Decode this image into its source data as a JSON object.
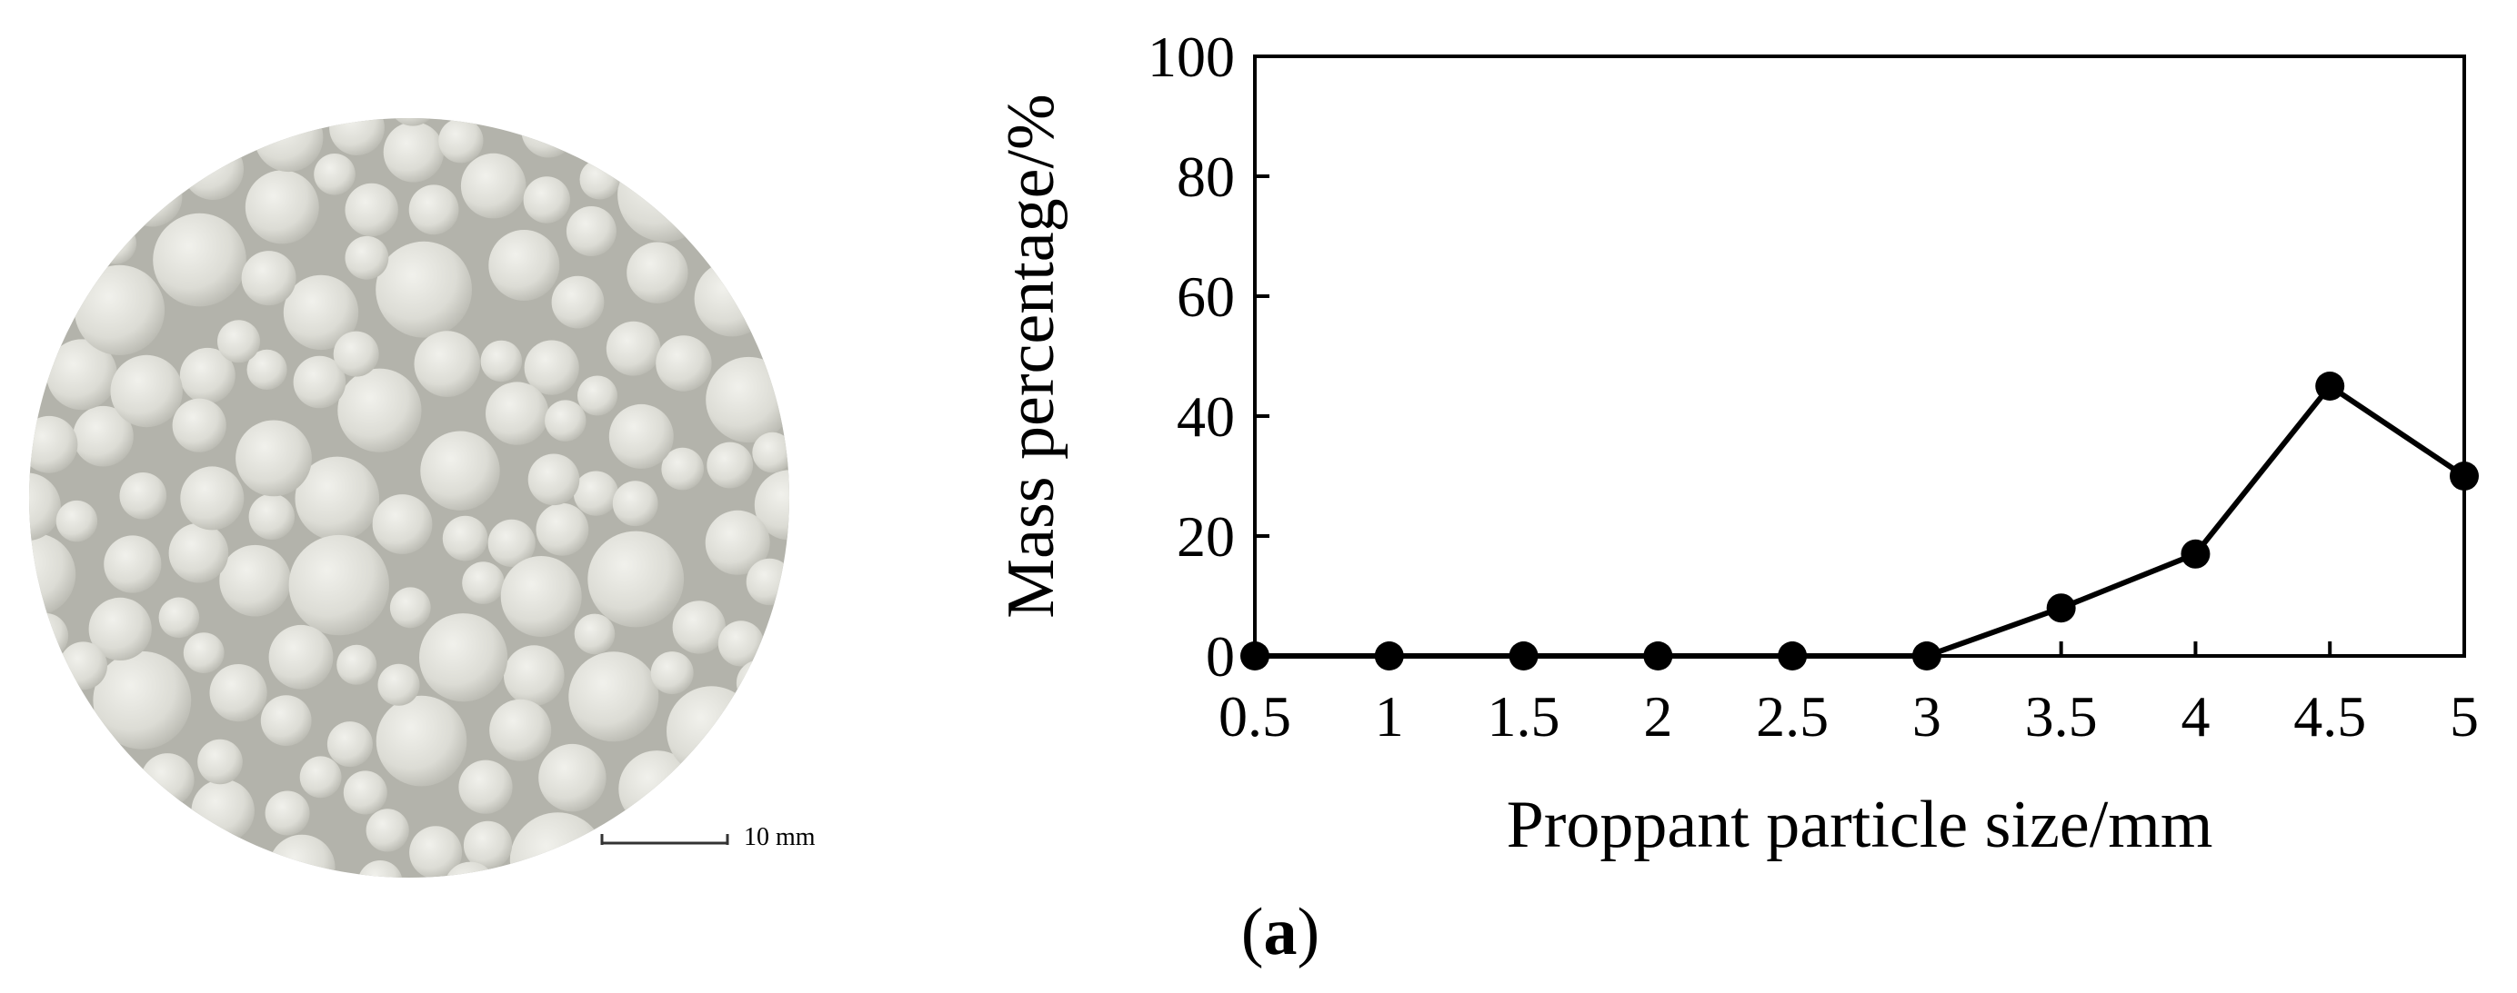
{
  "photo": {
    "description_icon": "proppant-photo",
    "scale_bar_label": "10 mm"
  },
  "panel_label": {
    "open": "(",
    "letter": "a",
    "close": ")"
  },
  "chart_data": {
    "type": "line",
    "x": [
      0.5,
      1,
      1.5,
      2,
      2.5,
      3,
      3.5,
      4,
      4.5,
      5
    ],
    "x_tick_labels": [
      "0.5",
      "1",
      "1.5",
      "2",
      "2.5",
      "3",
      "3.5",
      "4",
      "4.5",
      "5"
    ],
    "series": [
      {
        "values": [
          0,
          0,
          0,
          0,
          0,
          0,
          8,
          17,
          45,
          30
        ]
      }
    ],
    "xlabel": "Proppant particle size/mm",
    "ylabel": "Mass percentage/%",
    "xlim": [
      0.5,
      5
    ],
    "ylim": [
      0,
      100
    ],
    "y_ticks": [
      0,
      20,
      40,
      60,
      80,
      100
    ],
    "y_tick_labels": [
      "0",
      "20",
      "40",
      "60",
      "80",
      "100"
    ],
    "grid": false,
    "legend": "none",
    "marker": "filled-circle",
    "line_color": "#000000"
  }
}
